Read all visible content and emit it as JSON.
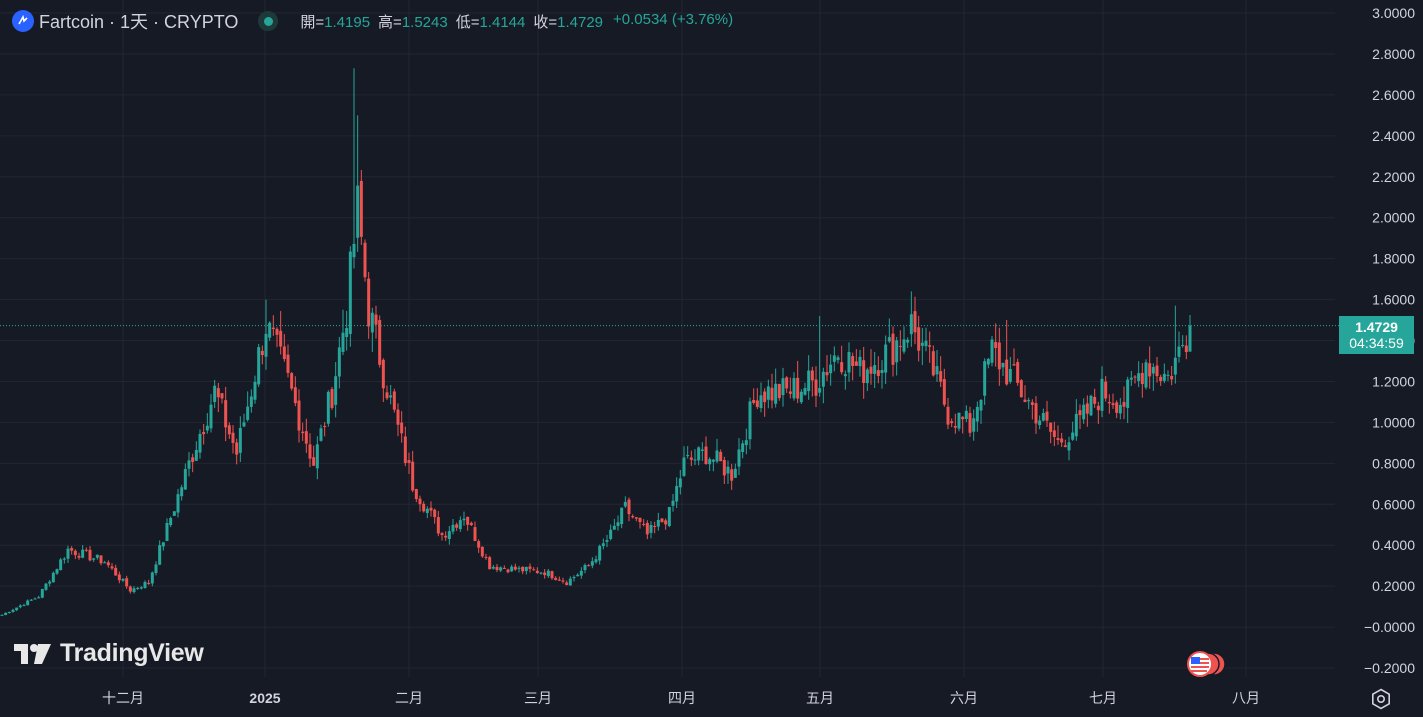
{
  "header": {
    "symbol": "Fartcoin · 1天 · CRYPTO",
    "ohlc": {
      "open_label": "開=",
      "open": "1.4195",
      "high_label": "高=",
      "high": "1.5243",
      "low_label": "低=",
      "low": "1.4144",
      "close_label": "收=",
      "close": "1.4729",
      "change": "+0.0534 (+3.76%)"
    }
  },
  "last_price": {
    "price": "1.4729",
    "countdown": "04:34:59"
  },
  "branding": {
    "name": "TradingView"
  },
  "colors": {
    "up": "#26a69a",
    "down": "#ef5350",
    "background": "#161a25",
    "grid": "#232632"
  },
  "icons": [
    "tradingview-logo-icon",
    "us-flag-icon",
    "settings-gear-icon",
    "coin-logo-icon"
  ],
  "chart_data": {
    "type": "candlestick",
    "y_range": [
      -0.25,
      3.03
    ],
    "y_ticks": [
      "3.0000",
      "2.8000",
      "2.6000",
      "2.4000",
      "2.2000",
      "2.0000",
      "1.8000",
      "1.6000",
      "1.4000",
      "1.2000",
      "1.0000",
      "0.8000",
      "0.6000",
      "0.4000",
      "0.2000",
      "−0.0000",
      "−0.2000"
    ],
    "x_labels": [
      "十二月",
      "2025",
      "二月",
      "三月",
      "四月",
      "五月",
      "六月",
      "七月",
      "八月"
    ],
    "last_price": 1.4729,
    "grid": true,
    "close_anchors": [
      [
        0,
        0.06
      ],
      [
        10,
        0.15
      ],
      [
        18,
        0.38
      ],
      [
        28,
        0.32
      ],
      [
        35,
        0.18
      ],
      [
        40,
        0.22
      ],
      [
        52,
        0.85
      ],
      [
        58,
        1.15
      ],
      [
        64,
        0.85
      ],
      [
        72,
        1.48
      ],
      [
        78,
        1.2
      ],
      [
        85,
        0.8
      ],
      [
        90,
        1.15
      ],
      [
        94,
        1.55
      ],
      [
        97,
        2.05
      ],
      [
        100,
        1.55
      ],
      [
        106,
        1.1
      ],
      [
        112,
        0.7
      ],
      [
        120,
        0.45
      ],
      [
        126,
        0.55
      ],
      [
        133,
        0.3
      ],
      [
        141,
        0.28
      ],
      [
        148,
        0.27
      ],
      [
        154,
        0.22
      ],
      [
        160,
        0.3
      ],
      [
        166,
        0.45
      ],
      [
        170,
        0.58
      ],
      [
        176,
        0.45
      ],
      [
        182,
        0.55
      ],
      [
        186,
        0.8
      ],
      [
        192,
        0.85
      ],
      [
        199,
        0.75
      ],
      [
        206,
        1.15
      ],
      [
        214,
        1.15
      ],
      [
        222,
        1.2
      ],
      [
        228,
        1.35
      ],
      [
        234,
        1.25
      ],
      [
        242,
        1.35
      ],
      [
        248,
        1.48
      ],
      [
        254,
        1.25
      ],
      [
        258,
        1.05
      ],
      [
        264,
        0.98
      ],
      [
        270,
        1.35
      ],
      [
        276,
        1.2
      ],
      [
        282,
        1.05
      ],
      [
        288,
        0.9
      ],
      [
        294,
        1.0
      ],
      [
        300,
        1.15
      ],
      [
        306,
        1.1
      ],
      [
        312,
        1.3
      ],
      [
        318,
        1.22
      ],
      [
        322,
        1.38
      ],
      [
        324,
        1.47
      ]
    ]
  }
}
